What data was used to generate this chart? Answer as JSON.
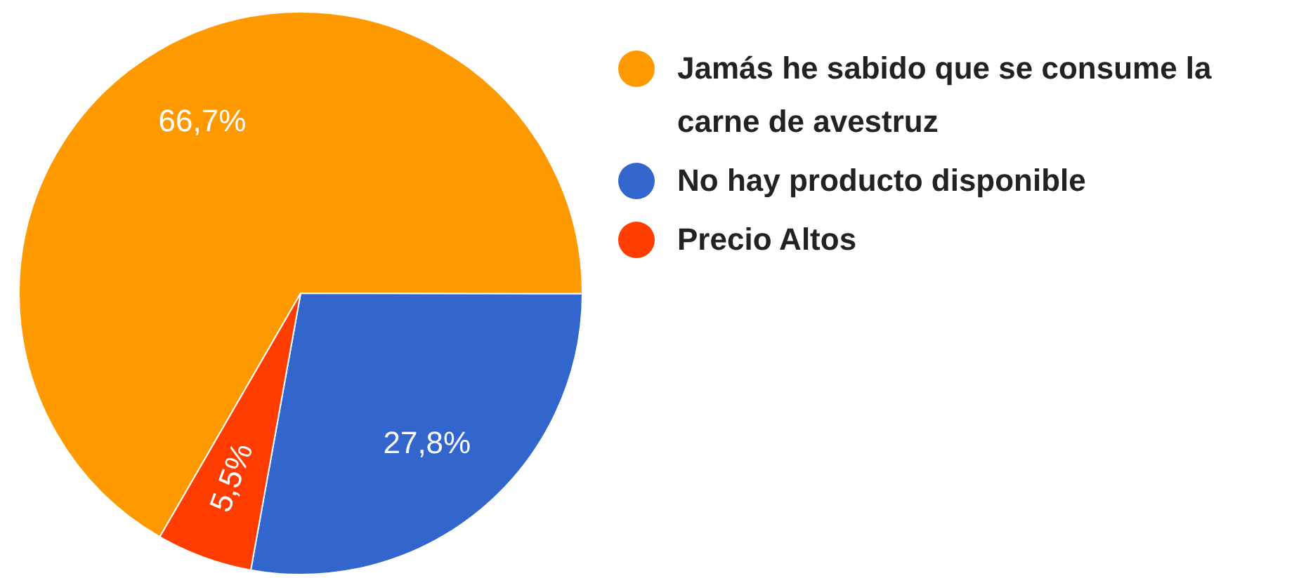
{
  "chart_data": {
    "type": "pie",
    "categories": [
      "Jamás he sabido que se consume la carne de avestruz",
      "No hay producto disponible",
      "Precio Altos"
    ],
    "values": [
      66.7,
      27.8,
      5.5
    ],
    "colors": [
      "#ff9900",
      "#3366cc",
      "#ff3d00"
    ],
    "value_labels": [
      "66,7%",
      "27,8%",
      "5,5%"
    ],
    "legend": "right"
  }
}
